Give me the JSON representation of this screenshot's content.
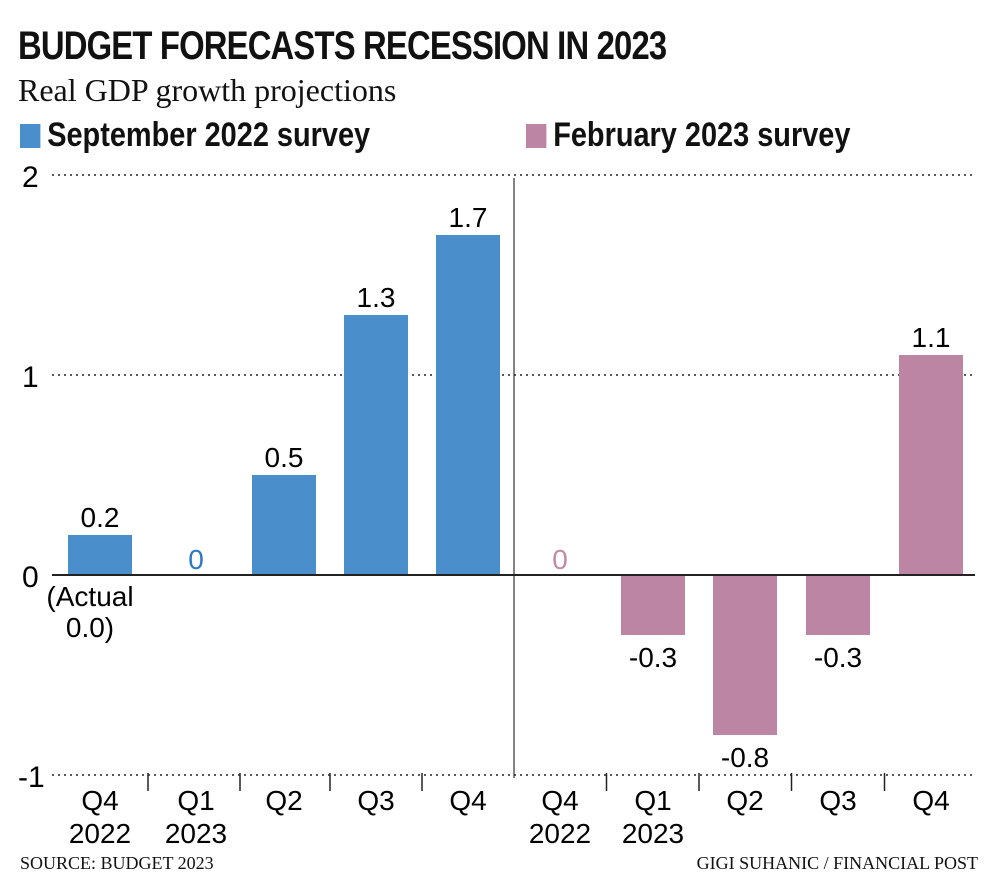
{
  "title": "BUDGET FORECASTS RECESSION IN 2023",
  "subtitle": "Real GDP growth projections",
  "source": "SOURCE: BUDGET 2023",
  "credit": "GIGI SUHANIC / FINANCIAL POST",
  "colors": {
    "september": "#4a8fcc",
    "february": "#bc85a3",
    "september_zero": "#2b7bc2",
    "february_zero": "#c28aaa"
  },
  "chart_data": {
    "type": "bar",
    "ylim": [
      -1,
      2
    ],
    "yticks": [
      "2",
      "1",
      "0",
      "-1"
    ],
    "grid": true,
    "legend_placement": "top",
    "series": [
      {
        "name": "September 2022 survey",
        "categories": [
          [
            "Q4",
            "2022"
          ],
          [
            "Q1",
            "2023"
          ],
          [
            "Q2",
            ""
          ],
          [
            "Q3",
            ""
          ],
          [
            "Q4",
            ""
          ]
        ],
        "values": [
          0.2,
          0,
          0.5,
          1.3,
          1.7
        ],
        "labels": [
          "0.2",
          "0",
          "0.5",
          "1.3",
          "1.7"
        ]
      },
      {
        "name": "February 2023 survey",
        "categories": [
          [
            "Q4",
            "2022"
          ],
          [
            "Q1",
            "2023"
          ],
          [
            "Q2",
            ""
          ],
          [
            "Q3",
            ""
          ],
          [
            "Q4",
            ""
          ]
        ],
        "values": [
          0,
          -0.3,
          -0.8,
          -0.3,
          1.1
        ],
        "labels": [
          "0",
          "-0.3",
          "-0.8",
          "-0.3",
          "1.1"
        ]
      }
    ],
    "annotation": [
      "(Actual",
      "0.0)"
    ]
  }
}
